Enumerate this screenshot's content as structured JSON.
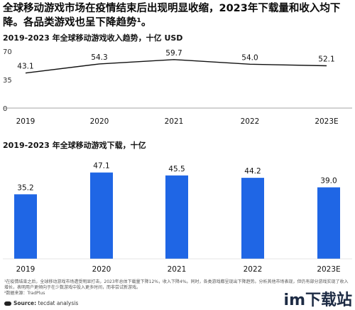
{
  "headline": "全球移动游戏市场在疫情结束后出现明显收缩，2023年下载量和收入均下降。各品类游戏也呈下降趋势¹。",
  "colors": {
    "line": "#111111",
    "bar": "#1f66e5",
    "axis": "#888888"
  },
  "chart_data": [
    {
      "type": "line",
      "title": "2019-2023 年全球移动游戏收入趋势，十亿 USD",
      "categories": [
        "2019",
        "2020",
        "2021",
        "2022",
        "2023E"
      ],
      "values": [
        43.1,
        54.3,
        59.7,
        54.0,
        52.1
      ],
      "value_labels": [
        "43.1",
        "54.3",
        "59.7",
        "54.0",
        "52.1"
      ],
      "y_ticks": [
        "70",
        "35",
        "0"
      ],
      "ylim": [
        0,
        70
      ],
      "grid": false
    },
    {
      "type": "bar",
      "title": "2019-2023 年全球移动游戏下载，十亿",
      "categories": [
        "2019",
        "2020",
        "2021",
        "2022",
        "2023E"
      ],
      "values": [
        35.2,
        47.1,
        45.5,
        44.2,
        39.0
      ],
      "value_labels": [
        "35.2",
        "47.1",
        "45.5",
        "44.2",
        "39.0"
      ],
      "ylim": [
        0,
        52
      ],
      "grid": false
    }
  ],
  "footnote": "¹在疫情结束之后，全球移动游戏市场遭受明显打击，2023年总体下载量下降12%，收入下降4%。同时，各类游戏都呈现出下降趋势。分析其他市场表现，但仍有部分游戏实现了收入增长，表明用户更倾向于在少数游戏中投入更多时间，而非尝试新游戏。",
  "data_source": "²数据来源：TradPlus",
  "source_label": "Source:",
  "source_text": "tecdat analysis",
  "watermark": "im下载站"
}
